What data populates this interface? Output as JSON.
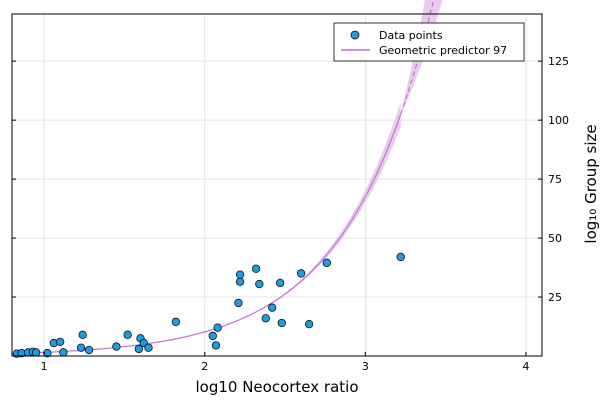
{
  "chart_data": {
    "type": "scatter",
    "xlabel": "log10 Neocortex ratio",
    "ylabel": "log₁₀ Group size",
    "xlim": [
      0.8,
      4.1
    ],
    "ylim": [
      0,
      145
    ],
    "xticks": [
      1,
      2,
      3,
      4
    ],
    "yticks": [
      25,
      50,
      75,
      100,
      125
    ],
    "grid": true,
    "y_axis_side": "right",
    "legend_position": "top-right",
    "colors": {
      "points": "#1f9be0",
      "fit": "#c571d6",
      "band": "#e9cbee",
      "grid": "#e4e4e4"
    },
    "series": [
      {
        "name": "Data points",
        "kind": "scatter",
        "points": [
          [
            0.83,
            1.0
          ],
          [
            0.86,
            1.2
          ],
          [
            0.9,
            1.5
          ],
          [
            0.93,
            1.8
          ],
          [
            0.95,
            1.5
          ],
          [
            1.02,
            1.2
          ],
          [
            1.06,
            5.5
          ],
          [
            1.1,
            6.0
          ],
          [
            1.12,
            1.5
          ],
          [
            1.23,
            3.5
          ],
          [
            1.24,
            9.0
          ],
          [
            1.28,
            2.5
          ],
          [
            1.45,
            4.0
          ],
          [
            1.52,
            9.0
          ],
          [
            1.59,
            3.0
          ],
          [
            1.6,
            7.5
          ],
          [
            1.62,
            5.5
          ],
          [
            1.65,
            3.5
          ],
          [
            1.82,
            14.5
          ],
          [
            2.05,
            8.5
          ],
          [
            2.07,
            4.5
          ],
          [
            2.08,
            12.0
          ],
          [
            2.21,
            22.5
          ],
          [
            2.22,
            31.5
          ],
          [
            2.22,
            34.5
          ],
          [
            2.32,
            37.0
          ],
          [
            2.34,
            30.5
          ],
          [
            2.38,
            16.0
          ],
          [
            2.42,
            20.5
          ],
          [
            2.47,
            31.0
          ],
          [
            2.48,
            14.0
          ],
          [
            2.6,
            35.0
          ],
          [
            2.65,
            13.5
          ],
          [
            2.76,
            39.5
          ],
          [
            3.22,
            42.0
          ]
        ]
      },
      {
        "name": "Geometric predictor 97",
        "kind": "line",
        "fit": {
          "a": 0.233,
          "b": 1.89
        },
        "solid_until": 3.22,
        "band_ratio_upper": 1.48,
        "band_ratio_lower": 0.72
      }
    ]
  }
}
